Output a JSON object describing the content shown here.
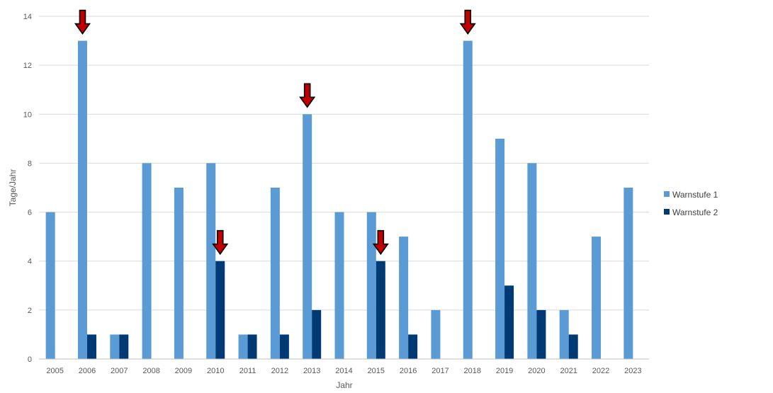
{
  "chart_data": {
    "type": "bar",
    "categories": [
      "2005",
      "2006",
      "2007",
      "2008",
      "2009",
      "2010",
      "2011",
      "2012",
      "2013",
      "2014",
      "2015",
      "2016",
      "2017",
      "2018",
      "2019",
      "2020",
      "2021",
      "2022",
      "2023"
    ],
    "series": [
      {
        "name": "Warnstufe 1",
        "color": "#5B9BD5",
        "values": [
          6,
          13,
          1,
          8,
          7,
          8,
          1,
          7,
          10,
          6,
          6,
          5,
          2,
          13,
          9,
          8,
          2,
          5,
          7
        ]
      },
      {
        "name": "Warnstufe 2",
        "color": "#003A75",
        "values": [
          0,
          1,
          1,
          0,
          0,
          4,
          1,
          1,
          2,
          0,
          4,
          1,
          0,
          0,
          3,
          2,
          1,
          0,
          0
        ]
      }
    ],
    "xlabel": "Jahr",
    "ylabel": "Tage/Jahr",
    "ylim": [
      0,
      14
    ],
    "yticks": [
      0,
      2,
      4,
      6,
      8,
      10,
      12,
      14
    ],
    "grid": true,
    "legend_position": "right",
    "annotations": {
      "type": "arrow-down",
      "color": "#C00000",
      "markers": [
        {
          "category": "2006",
          "series": "Warnstufe 1",
          "value": 13
        },
        {
          "category": "2010",
          "series": "Warnstufe 2",
          "value": 4
        },
        {
          "category": "2013",
          "series": "Warnstufe 1",
          "value": 10
        },
        {
          "category": "2015",
          "series": "Warnstufe 2",
          "value": 4
        },
        {
          "category": "2018",
          "series": "Warnstufe 1",
          "value": 13
        }
      ]
    }
  }
}
